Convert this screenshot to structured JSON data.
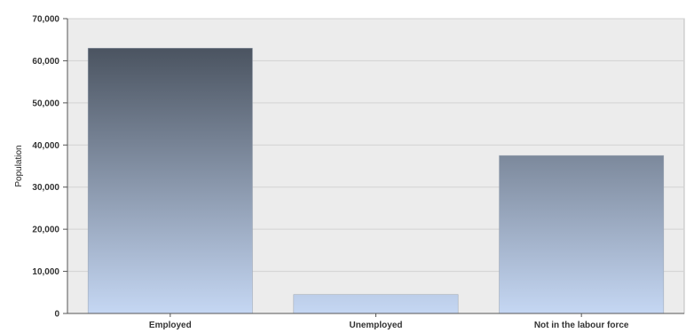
{
  "chart_data": {
    "type": "bar",
    "title": "",
    "xlabel": "",
    "ylabel": "Population",
    "categories": [
      "Employed",
      "Unemployed",
      "Not in the labour force"
    ],
    "values": [
      63000,
      4500,
      37500
    ],
    "ylim": [
      0,
      70000
    ],
    "yticks": [
      0,
      10000,
      20000,
      30000,
      40000,
      50000,
      60000,
      70000
    ],
    "ytick_labels": [
      "0",
      "10,000",
      "20,000",
      "30,000",
      "40,000",
      "50,000",
      "60,000",
      "70,000"
    ],
    "grid": true,
    "legend": "none",
    "colors": {
      "plot_background": "#ececec",
      "grid": "#d2d2d2",
      "axis": "#555555",
      "bar_top": "#3d4550",
      "bar_bottom": "#c5d7f3"
    }
  }
}
